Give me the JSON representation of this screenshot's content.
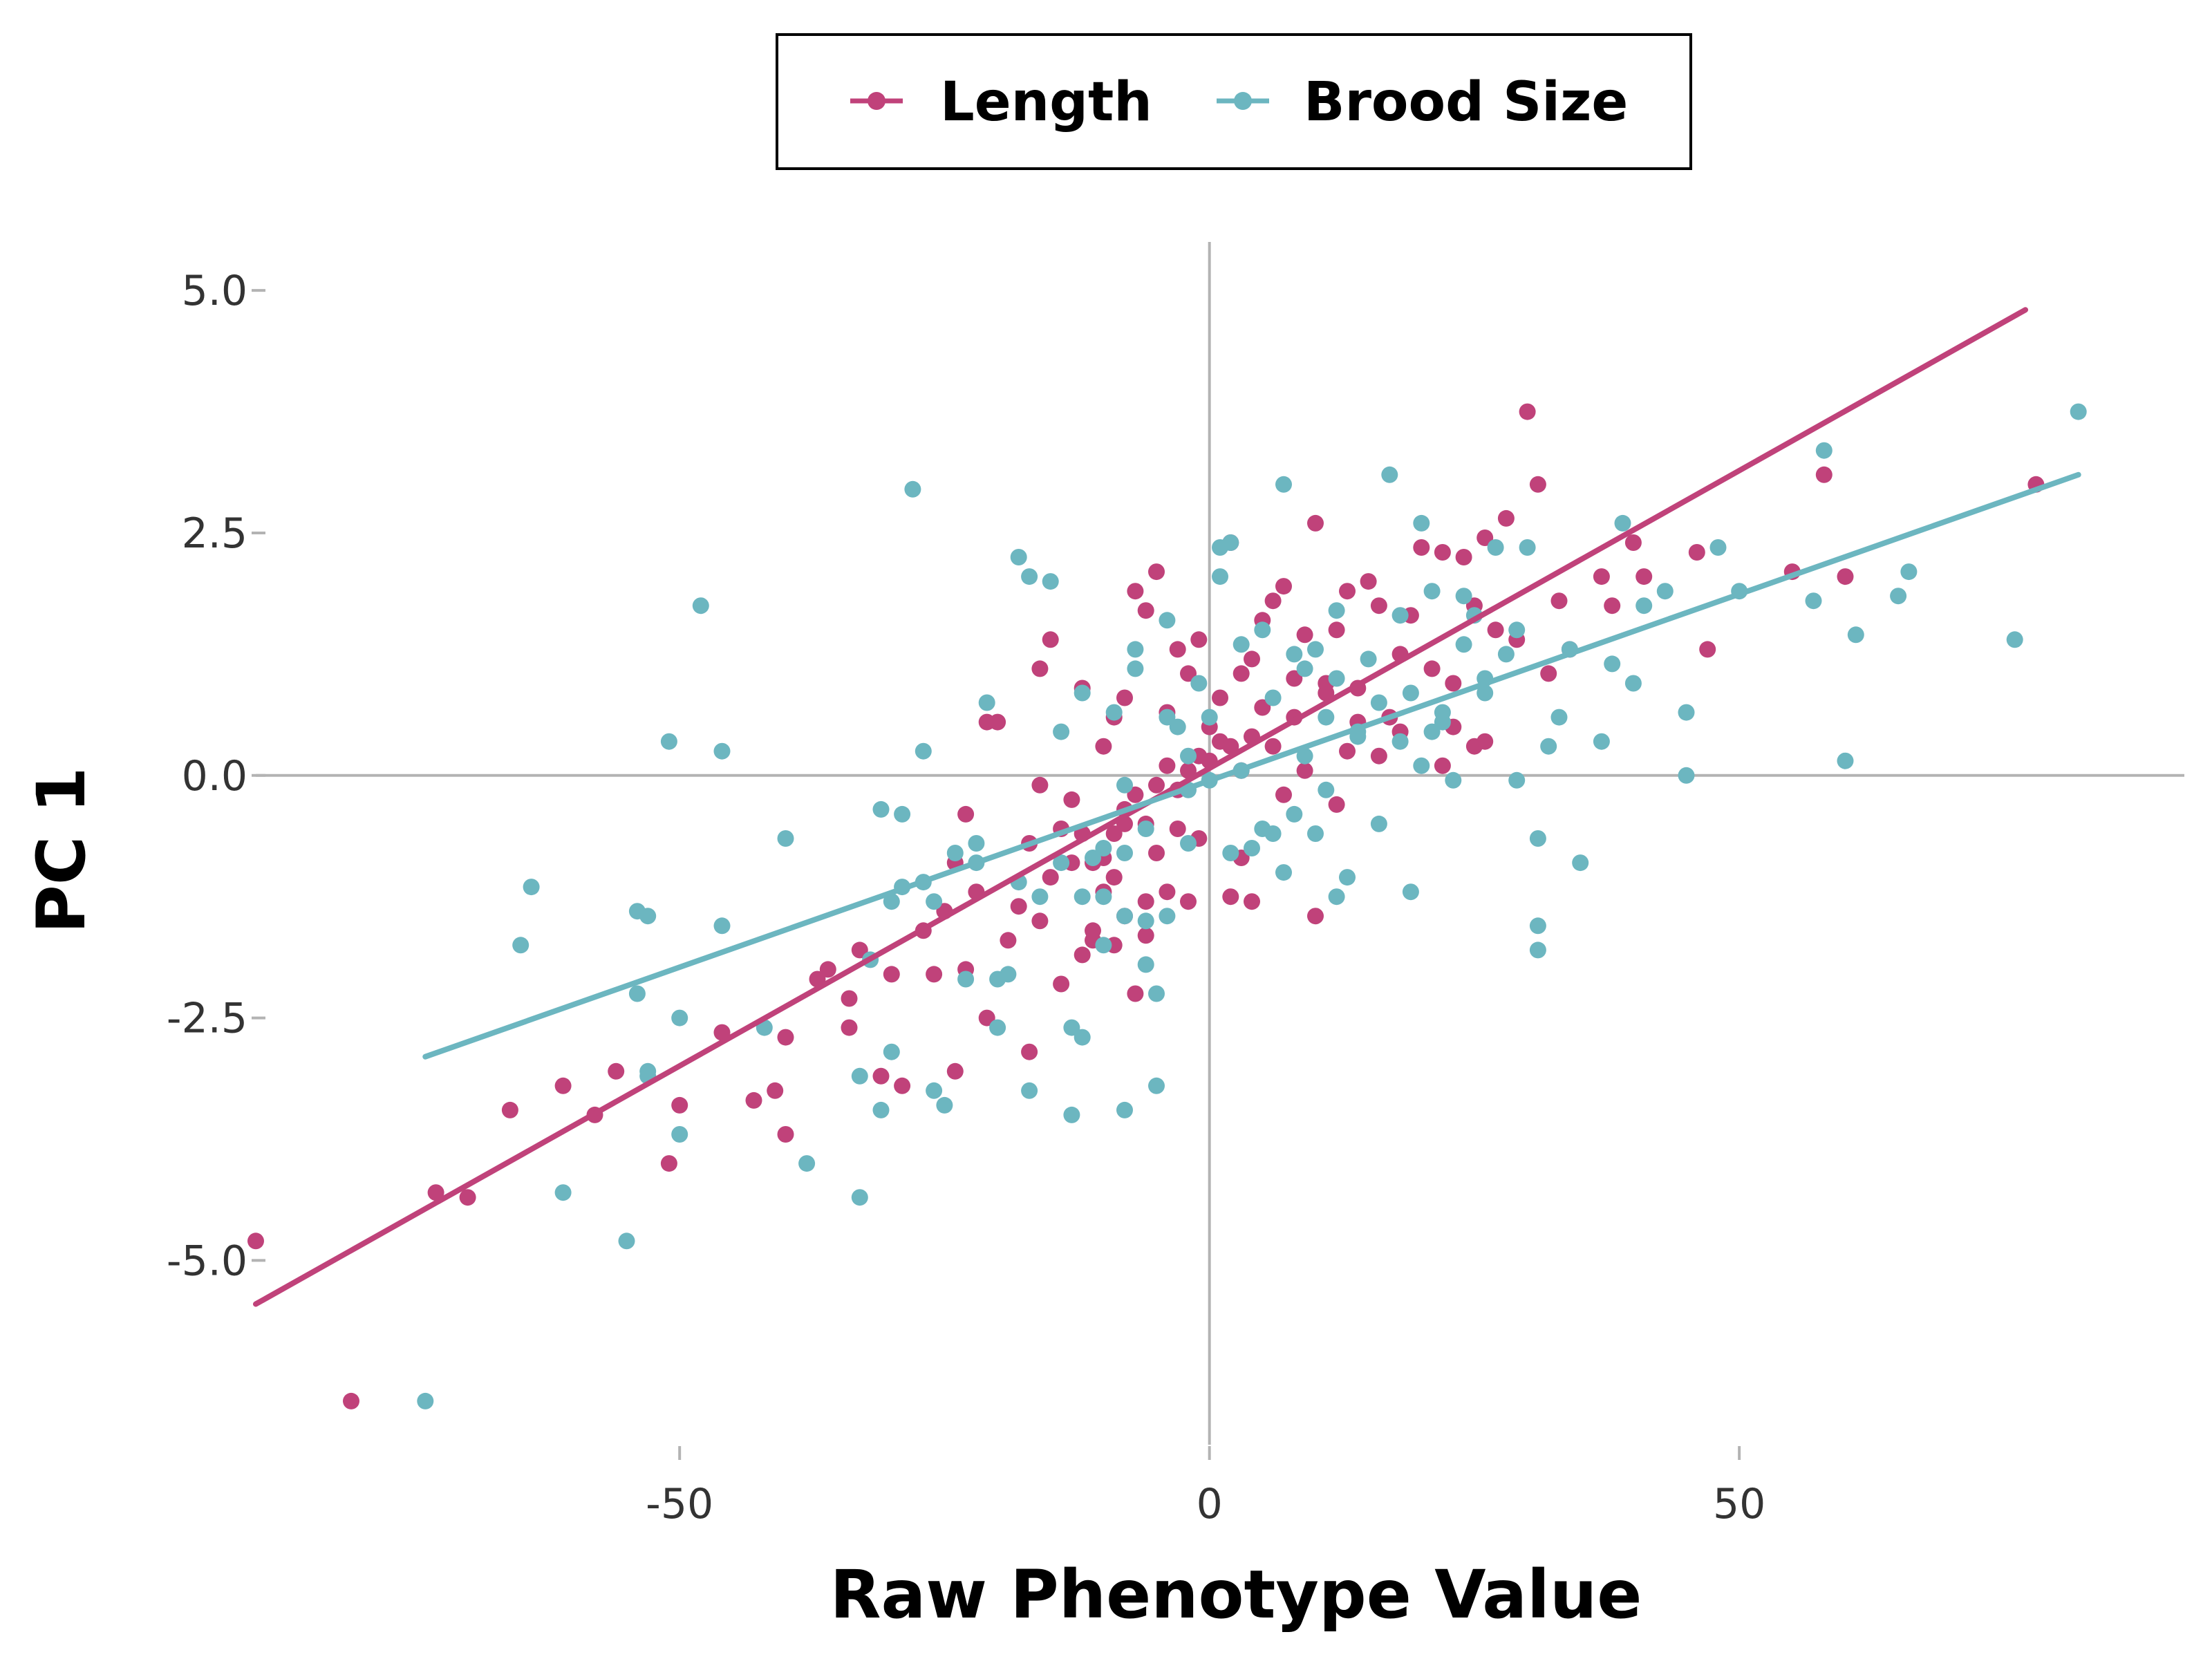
{
  "chart_data": {
    "type": "scatter",
    "xlabel": "Raw Phenotype Value",
    "ylabel": "PC 1",
    "xlim": [
      -90,
      92
    ],
    "ylim": [
      -6.9,
      5.5
    ],
    "x_ticks": [
      {
        "value": -50,
        "label": "-50"
      },
      {
        "value": 0,
        "label": "0"
      },
      {
        "value": 50,
        "label": "50"
      }
    ],
    "y_ticks": [
      {
        "value": 5.0,
        "label": "5.0"
      },
      {
        "value": 2.5,
        "label": "2.5"
      },
      {
        "value": 0.0,
        "label": "0.0"
      },
      {
        "value": -2.5,
        "label": "-2.5"
      },
      {
        "value": -5.0,
        "label": "-5.0"
      }
    ],
    "grid": false,
    "reference_lines": {
      "x": 0,
      "y": 0,
      "color": "#b3b3b3"
    },
    "legend_position": "top",
    "series": [
      {
        "name": "Length",
        "color": "#c0427a",
        "fit_line": {
          "x": [
            -90,
            77
          ],
          "y": [
            -5.45,
            4.8
          ]
        },
        "points": [
          [
            -90,
            -4.8
          ],
          [
            -81,
            -6.45
          ],
          [
            -73,
            -4.3
          ],
          [
            -70,
            -4.35
          ],
          [
            -66,
            -3.45
          ],
          [
            -61,
            -3.2
          ],
          [
            -58,
            -3.5
          ],
          [
            -56,
            -3.05
          ],
          [
            -51,
            -4.0
          ],
          [
            -50,
            -3.4
          ],
          [
            -46,
            -2.65
          ],
          [
            -43,
            -3.35
          ],
          [
            -41,
            -3.25
          ],
          [
            -40,
            -3.7
          ],
          [
            -40,
            -2.7
          ],
          [
            -37,
            -2.1
          ],
          [
            -36,
            -2.0
          ],
          [
            -34,
            -2.3
          ],
          [
            -33,
            -1.8
          ],
          [
            -34,
            -2.6
          ],
          [
            -31,
            -3.1
          ],
          [
            -30,
            -2.05
          ],
          [
            -29,
            -3.2
          ],
          [
            -27,
            -1.6
          ],
          [
            -26,
            -2.05
          ],
          [
            -25,
            -1.4
          ],
          [
            -24,
            -3.05
          ],
          [
            -23,
            -2.0
          ],
          [
            -22,
            -1.2
          ],
          [
            -24,
            -0.9
          ],
          [
            -23,
            -0.4
          ],
          [
            -21,
            -2.5
          ],
          [
            -19,
            -1.7
          ],
          [
            -18,
            -1.35
          ],
          [
            -17,
            -2.85
          ],
          [
            -16,
            -1.5
          ],
          [
            -15,
            -1.05
          ],
          [
            -14,
            -2.15
          ],
          [
            -12,
            -1.85
          ],
          [
            -11,
            -1.6
          ],
          [
            -10,
            -1.2
          ],
          [
            -9,
            -1.75
          ],
          [
            -8,
            -1.45
          ],
          [
            -7,
            -2.25
          ],
          [
            -6,
            -1.65
          ],
          [
            -20,
            0.55
          ],
          [
            -21,
            0.55
          ],
          [
            -17,
            -0.7
          ],
          [
            -16,
            -0.1
          ],
          [
            -14,
            -0.55
          ],
          [
            -13,
            -0.25
          ],
          [
            -12,
            -0.6
          ],
          [
            -11,
            -0.9
          ],
          [
            -10,
            -0.85
          ],
          [
            -9,
            -0.6
          ],
          [
            -8,
            -0.35
          ],
          [
            -7,
            -0.2
          ],
          [
            -6,
            -0.5
          ],
          [
            -5,
            -0.1
          ],
          [
            -4,
            0.1
          ],
          [
            -3,
            -0.15
          ],
          [
            -2,
            0.05
          ],
          [
            -1,
            0.2
          ],
          [
            0,
            0.15
          ],
          [
            1,
            0.35
          ],
          [
            2,
            0.3
          ],
          [
            3,
            0.05
          ],
          [
            4,
            0.4
          ],
          [
            5,
            0.7
          ],
          [
            -16,
            1.1
          ],
          [
            -15,
            1.4
          ],
          [
            -12,
            0.9
          ],
          [
            -10,
            0.3
          ],
          [
            -9,
            0.6
          ],
          [
            -8,
            0.8
          ],
          [
            -7,
            1.9
          ],
          [
            -6,
            1.7
          ],
          [
            -5,
            2.1
          ],
          [
            -4,
            0.65
          ],
          [
            -3,
            1.3
          ],
          [
            -2,
            1.05
          ],
          [
            -1,
            1.4
          ],
          [
            0,
            0.5
          ],
          [
            1,
            0.8
          ],
          [
            2,
            2.4
          ],
          [
            3,
            1.05
          ],
          [
            4,
            1.2
          ],
          [
            5,
            1.6
          ],
          [
            6,
            1.8
          ],
          [
            7,
            1.95
          ],
          [
            8,
            1.0
          ],
          [
            9,
            1.45
          ],
          [
            10,
            2.6
          ],
          [
            11,
            0.95
          ],
          [
            12,
            1.5
          ],
          [
            13,
            1.9
          ],
          [
            14,
            0.9
          ],
          [
            15,
            2.0
          ],
          [
            16,
            1.75
          ],
          [
            17,
            0.6
          ],
          [
            18,
            1.25
          ],
          [
            19,
            1.65
          ],
          [
            20,
            2.35
          ],
          [
            21,
            1.1
          ],
          [
            22,
            2.3
          ],
          [
            23,
            0.95
          ],
          [
            24,
            2.25
          ],
          [
            25,
            1.75
          ],
          [
            26,
            2.45
          ],
          [
            27,
            1.5
          ],
          [
            28,
            2.65
          ],
          [
            29,
            1.4
          ],
          [
            30,
            3.75
          ],
          [
            31,
            3.0
          ],
          [
            32,
            1.05
          ],
          [
            33,
            1.8
          ],
          [
            34,
            1.3
          ],
          [
            37,
            2.05
          ],
          [
            38,
            1.75
          ],
          [
            40,
            2.4
          ],
          [
            41,
            2.05
          ],
          [
            46,
            2.3
          ],
          [
            47,
            1.3
          ],
          [
            55,
            2.1
          ],
          [
            58,
            3.1
          ],
          [
            60,
            2.05
          ],
          [
            78,
            3.0
          ],
          [
            6,
            0.3
          ],
          [
            7,
            -0.2
          ],
          [
            8,
            0.6
          ],
          [
            9,
            0.05
          ],
          [
            10,
            -1.45
          ],
          [
            11,
            0.85
          ],
          [
            12,
            -0.3
          ],
          [
            13,
            0.25
          ],
          [
            14,
            0.55
          ],
          [
            3,
            -0.85
          ],
          [
            2,
            -1.25
          ],
          [
            4,
            -1.3
          ],
          [
            -2,
            -1.3
          ],
          [
            -3,
            -0.55
          ],
          [
            -1,
            -0.65
          ],
          [
            -5,
            -0.8
          ],
          [
            -4,
            -1.2
          ],
          [
            -13,
            -0.9
          ],
          [
            -11,
            -1.7
          ],
          [
            -9,
            -1.05
          ],
          [
            -8,
            -0.5
          ],
          [
            -6,
            -1.3
          ],
          [
            25,
            0.3
          ],
          [
            26,
            0.35
          ],
          [
            23,
            0.5
          ],
          [
            22,
            0.1
          ],
          [
            18,
            0.45
          ],
          [
            16,
            0.2
          ]
        ]
      },
      {
        "name": "Brood Size",
        "color": "#6cb6c0",
        "fit_line": {
          "x": [
            -74,
            82
          ],
          "y": [
            -2.9,
            3.1
          ]
        },
        "points": [
          [
            -74,
            -6.45
          ],
          [
            -65,
            -1.75
          ],
          [
            -64,
            -1.15
          ],
          [
            -61,
            -4.3
          ],
          [
            -55,
            -4.8
          ],
          [
            -54,
            -2.25
          ],
          [
            -54,
            -1.4
          ],
          [
            -53,
            -1.45
          ],
          [
            -53,
            -3.05
          ],
          [
            -53,
            -3.1
          ],
          [
            -51,
            0.35
          ],
          [
            -50,
            -2.5
          ],
          [
            -50,
            -3.7
          ],
          [
            -48,
            1.75
          ],
          [
            -46,
            -1.55
          ],
          [
            -46,
            0.25
          ],
          [
            -42,
            -2.6
          ],
          [
            -40,
            -0.65
          ],
          [
            -38,
            -4.0
          ],
          [
            -33,
            -3.1
          ],
          [
            -33,
            -4.35
          ],
          [
            -32,
            -1.9
          ],
          [
            -31,
            -0.35
          ],
          [
            -31,
            -3.45
          ],
          [
            -30,
            -2.85
          ],
          [
            -29,
            -0.4
          ],
          [
            -29,
            -1.15
          ],
          [
            -28,
            2.95
          ],
          [
            -27,
            -1.1
          ],
          [
            -27,
            0.25
          ],
          [
            -26,
            -1.3
          ],
          [
            -26,
            -3.25
          ],
          [
            -25,
            -3.4
          ],
          [
            -24,
            -0.8
          ],
          [
            -23,
            -2.1
          ],
          [
            -22,
            -0.9
          ],
          [
            -22,
            -0.7
          ],
          [
            -21,
            0.75
          ],
          [
            -20,
            -2.6
          ],
          [
            -19,
            -2.05
          ],
          [
            -18,
            2.25
          ],
          [
            -18,
            -1.1
          ],
          [
            -17,
            -3.25
          ],
          [
            -17,
            2.05
          ],
          [
            -15,
            2.0
          ],
          [
            -14,
            0.45
          ],
          [
            -13,
            -2.6
          ],
          [
            -13,
            -3.5
          ],
          [
            -12,
            -1.25
          ],
          [
            -12,
            0.85
          ],
          [
            -11,
            -0.85
          ],
          [
            -10,
            -1.75
          ],
          [
            -10,
            -1.25
          ],
          [
            -9,
            0.65
          ],
          [
            -8,
            -3.45
          ],
          [
            -8,
            -1.45
          ],
          [
            -7,
            1.1
          ],
          [
            -7,
            1.3
          ],
          [
            -6,
            -1.5
          ],
          [
            -6,
            -1.95
          ],
          [
            -5,
            -2.25
          ],
          [
            -5,
            -3.2
          ],
          [
            -4,
            1.6
          ],
          [
            -3,
            0.5
          ],
          [
            -2,
            0.2
          ],
          [
            -1,
            0.95
          ],
          [
            0,
            0.6
          ],
          [
            1,
            2.35
          ],
          [
            1,
            2.05
          ],
          [
            2,
            2.4
          ],
          [
            3,
            1.35
          ],
          [
            4,
            -0.75
          ],
          [
            5,
            1.5
          ],
          [
            6,
            0.8
          ],
          [
            6,
            -0.6
          ],
          [
            7,
            3.0
          ],
          [
            7,
            -1.0
          ],
          [
            8,
            1.25
          ],
          [
            8,
            -0.4
          ],
          [
            9,
            1.1
          ],
          [
            9,
            0.2
          ],
          [
            10,
            -0.6
          ],
          [
            11,
            0.6
          ],
          [
            11,
            -0.15
          ],
          [
            12,
            1.0
          ],
          [
            12,
            -1.25
          ],
          [
            13,
            -1.05
          ],
          [
            14,
            0.45
          ],
          [
            15,
            1.2
          ],
          [
            16,
            0.75
          ],
          [
            16,
            -0.5
          ],
          [
            17,
            3.1
          ],
          [
            18,
            1.65
          ],
          [
            19,
            0.85
          ],
          [
            19,
            -1.2
          ],
          [
            20,
            2.6
          ],
          [
            21,
            1.9
          ],
          [
            21,
            0.45
          ],
          [
            22,
            0.65
          ],
          [
            23,
            -0.05
          ],
          [
            24,
            1.85
          ],
          [
            25,
            1.65
          ],
          [
            26,
            0.85
          ],
          [
            27,
            2.35
          ],
          [
            28,
            1.25
          ],
          [
            29,
            1.5
          ],
          [
            29,
            -0.05
          ],
          [
            30,
            2.35
          ],
          [
            31,
            -1.55
          ],
          [
            31,
            -0.65
          ],
          [
            31,
            -1.8
          ],
          [
            32,
            0.3
          ],
          [
            33,
            0.6
          ],
          [
            34,
            1.3
          ],
          [
            35,
            -0.9
          ],
          [
            37,
            0.35
          ],
          [
            38,
            1.15
          ],
          [
            39,
            2.6
          ],
          [
            40,
            0.95
          ],
          [
            41,
            1.75
          ],
          [
            43,
            1.9
          ],
          [
            45,
            0.0
          ],
          [
            45,
            0.65
          ],
          [
            48,
            2.35
          ],
          [
            50,
            1.9
          ],
          [
            57,
            1.8
          ],
          [
            58,
            3.35
          ],
          [
            60,
            0.15
          ],
          [
            61,
            1.45
          ],
          [
            65,
            1.85
          ],
          [
            66,
            2.1
          ],
          [
            76,
            1.4
          ],
          [
            82,
            3.75
          ],
          [
            -30,
            -1.3
          ],
          [
            -16,
            -1.25
          ],
          [
            -4,
            0.6
          ],
          [
            -2,
            -0.7
          ],
          [
            0,
            -0.05
          ],
          [
            3,
            0.05
          ],
          [
            -10,
            -0.75
          ],
          [
            -8,
            -0.8
          ],
          [
            -6,
            -0.55
          ],
          [
            -4,
            -1.45
          ],
          [
            -2,
            -0.15
          ],
          [
            2,
            -0.8
          ],
          [
            5,
            -0.55
          ],
          [
            10,
            1.3
          ],
          [
            12,
            1.7
          ],
          [
            14,
            0.4
          ],
          [
            18,
            0.35
          ],
          [
            20,
            0.1
          ],
          [
            22,
            0.55
          ],
          [
            24,
            1.35
          ],
          [
            26,
            1.0
          ],
          [
            -20,
            -2.1
          ],
          [
            -14,
            -0.9
          ],
          [
            -12,
            -2.7
          ],
          [
            -8,
            -0.1
          ]
        ]
      }
    ]
  }
}
